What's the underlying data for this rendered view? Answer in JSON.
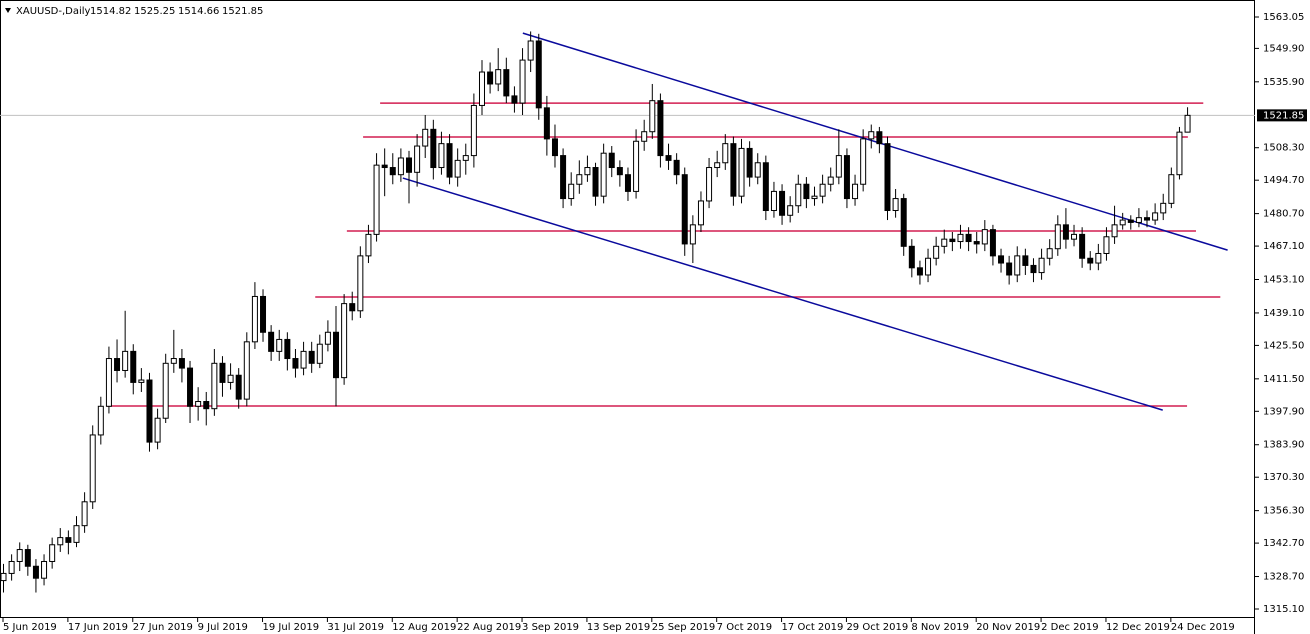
{
  "chart_data": {
    "type": "candlestick",
    "title": "XAUUSD-,Daily",
    "ylim": [
      1311.33,
      1568.91
    ],
    "yticks": [
      1563.05,
      {
        "value": 1549.9,
        "label": "1549.90"
      },
      {
        "value": 1535.9,
        "label": "1535.90"
      },
      {
        "value": 1508.3,
        "label": "1508.30"
      },
      {
        "value": 1494.7,
        "label": "1494.70"
      },
      {
        "value": 1480.7,
        "label": "1480.70"
      },
      {
        "value": 1467.1,
        "label": "1467.10"
      },
      {
        "value": 1453.1,
        "label": "1453.10"
      },
      {
        "value": 1439.1,
        "label": "1439.10"
      },
      {
        "value": 1425.5,
        "label": "1425.50"
      },
      {
        "value": 1411.5,
        "label": "1411.50"
      },
      {
        "value": 1397.9,
        "label": "1397.90"
      },
      {
        "value": 1383.9,
        "label": "1383.90"
      },
      {
        "value": 1370.3,
        "label": "1370.30"
      },
      {
        "value": 1356.3,
        "label": "1356.30"
      },
      {
        "value": 1342.7,
        "label": "1342.70"
      },
      {
        "value": 1328.7,
        "label": "1328.70"
      },
      {
        "value": 1315.1,
        "label": "1315.10"
      }
    ],
    "categories": [
      "5 Jun 2019",
      null,
      null,
      null,
      null,
      null,
      null,
      null,
      "17 Jun 2019",
      null,
      null,
      null,
      null,
      null,
      null,
      null,
      "27 Jun 2019",
      null,
      null,
      null,
      null,
      null,
      null,
      null,
      "9 Jul 2019",
      null,
      null,
      null,
      null,
      null,
      null,
      null,
      "19 Jul 2019",
      null,
      null,
      null,
      null,
      null,
      null,
      null,
      "31 Jul 2019",
      null,
      null,
      null,
      null,
      null,
      null,
      null,
      "12 Aug 2019",
      null,
      null,
      null,
      null,
      null,
      null,
      null,
      "22 Aug 2019",
      null,
      null,
      null,
      null,
      null,
      null,
      null,
      "3 Sep 2019",
      null,
      null,
      null,
      null,
      null,
      null,
      null,
      "13 Sep 2019",
      null,
      null,
      null,
      null,
      null,
      null,
      null,
      "25 Sep 2019",
      null,
      null,
      null,
      null,
      null,
      null,
      null,
      "7 Oct 2019",
      null,
      null,
      null,
      null,
      null,
      null,
      null,
      "17 Oct 2019",
      null,
      null,
      null,
      null,
      null,
      null,
      null,
      "29 Oct 2019",
      null,
      null,
      null,
      null,
      null,
      null,
      null,
      "8 Nov 2019",
      null,
      null,
      null,
      null,
      null,
      null,
      null,
      "20 Nov 2019",
      null,
      null,
      null,
      null,
      null,
      null,
      null,
      "2 Dec 2019",
      null,
      null,
      null,
      null,
      null,
      null,
      null,
      "12 Dec 2019",
      null,
      null,
      null,
      null,
      null,
      null,
      null,
      "24 Dec 2019",
      null,
      null
    ],
    "ohlc": [
      [
        1327,
        1334,
        1322,
        1330
      ],
      [
        1330,
        1338,
        1327,
        1335
      ],
      [
        1335,
        1343,
        1331,
        1340
      ],
      [
        1340,
        1342,
        1329,
        1333
      ],
      [
        1333,
        1336,
        1322,
        1328
      ],
      [
        1328,
        1338,
        1325,
        1335
      ],
      [
        1335,
        1345,
        1332,
        1342
      ],
      [
        1342,
        1349,
        1339,
        1345
      ],
      [
        1345,
        1348,
        1338,
        1343
      ],
      [
        1343,
        1354,
        1341,
        1350
      ],
      [
        1350,
        1364,
        1347,
        1360
      ],
      [
        1360,
        1392,
        1357,
        1388
      ],
      [
        1388,
        1404,
        1384,
        1400
      ],
      [
        1400,
        1425,
        1397,
        1420
      ],
      [
        1420,
        1428,
        1410,
        1415
      ],
      [
        1415,
        1440,
        1412,
        1423
      ],
      [
        1423,
        1426,
        1405,
        1410
      ],
      [
        1410,
        1416,
        1406,
        1411
      ],
      [
        1411,
        1414,
        1381,
        1385
      ],
      [
        1385,
        1399,
        1382,
        1395
      ],
      [
        1395,
        1422,
        1393,
        1418
      ],
      [
        1418,
        1432,
        1414,
        1420
      ],
      [
        1420,
        1424,
        1410,
        1416
      ],
      [
        1416,
        1419,
        1393,
        1400
      ],
      [
        1400,
        1408,
        1394,
        1402
      ],
      [
        1402,
        1406,
        1392,
        1399
      ],
      [
        1399,
        1424,
        1396,
        1418
      ],
      [
        1418,
        1421,
        1404,
        1410
      ],
      [
        1410,
        1418,
        1407,
        1413
      ],
      [
        1413,
        1416,
        1399,
        1403
      ],
      [
        1403,
        1431,
        1400,
        1427
      ],
      [
        1427,
        1452,
        1424,
        1446
      ],
      [
        1446,
        1449,
        1427,
        1431
      ],
      [
        1431,
        1434,
        1419,
        1423
      ],
      [
        1423,
        1432,
        1419,
        1428
      ],
      [
        1428,
        1431,
        1415,
        1420
      ],
      [
        1420,
        1424,
        1412,
        1416
      ],
      [
        1416,
        1427,
        1413,
        1423
      ],
      [
        1423,
        1427,
        1414,
        1418
      ],
      [
        1418,
        1430,
        1416,
        1426
      ],
      [
        1426,
        1436,
        1423,
        1431
      ],
      [
        1431,
        1442,
        1400,
        1412
      ],
      [
        1412,
        1447,
        1409,
        1443
      ],
      [
        1443,
        1448,
        1436,
        1440
      ],
      [
        1440,
        1467,
        1437,
        1463
      ],
      [
        1463,
        1476,
        1460,
        1472
      ],
      [
        1472,
        1506,
        1469,
        1501
      ],
      [
        1501,
        1508,
        1488,
        1500
      ],
      [
        1500,
        1506,
        1493,
        1497
      ],
      [
        1497,
        1508,
        1494,
        1504
      ],
      [
        1504,
        1507,
        1485,
        1498
      ],
      [
        1498,
        1514,
        1492,
        1509
      ],
      [
        1509,
        1522,
        1504,
        1516
      ],
      [
        1516,
        1520,
        1495,
        1500
      ],
      [
        1500,
        1515,
        1497,
        1510
      ],
      [
        1510,
        1514,
        1493,
        1496
      ],
      [
        1496,
        1508,
        1492,
        1503
      ],
      [
        1503,
        1510,
        1497,
        1505
      ],
      [
        1505,
        1531,
        1500,
        1526
      ],
      [
        1526,
        1545,
        1522,
        1540
      ],
      [
        1540,
        1544,
        1531,
        1535
      ],
      [
        1535,
        1550,
        1532,
        1541
      ],
      [
        1541,
        1546,
        1527,
        1530
      ],
      [
        1530,
        1534,
        1523,
        1527
      ],
      [
        1527,
        1550,
        1522,
        1545
      ],
      [
        1545,
        1557,
        1540,
        1553
      ],
      [
        1553,
        1556,
        1520,
        1525
      ],
      [
        1525,
        1530,
        1505,
        1512
      ],
      [
        1512,
        1518,
        1500,
        1505
      ],
      [
        1505,
        1508,
        1483,
        1487
      ],
      [
        1487,
        1498,
        1484,
        1493
      ],
      [
        1493,
        1503,
        1489,
        1497
      ],
      [
        1497,
        1505,
        1494,
        1500
      ],
      [
        1500,
        1502,
        1484,
        1488
      ],
      [
        1488,
        1510,
        1485,
        1506
      ],
      [
        1506,
        1509,
        1496,
        1500
      ],
      [
        1500,
        1503,
        1492,
        1497
      ],
      [
        1497,
        1500,
        1486,
        1490
      ],
      [
        1490,
        1516,
        1487,
        1511
      ],
      [
        1511,
        1520,
        1507,
        1515
      ],
      [
        1515,
        1535,
        1512,
        1528
      ],
      [
        1528,
        1531,
        1500,
        1505
      ],
      [
        1505,
        1510,
        1499,
        1503
      ],
      [
        1503,
        1506,
        1493,
        1497
      ],
      [
        1497,
        1500,
        1463,
        1468
      ],
      [
        1468,
        1480,
        1460,
        1476
      ],
      [
        1476,
        1490,
        1473,
        1486
      ],
      [
        1486,
        1504,
        1483,
        1500
      ],
      [
        1500,
        1507,
        1496,
        1502
      ],
      [
        1502,
        1514,
        1499,
        1510
      ],
      [
        1510,
        1513,
        1484,
        1488
      ],
      [
        1488,
        1512,
        1485,
        1508
      ],
      [
        1508,
        1511,
        1492,
        1496
      ],
      [
        1496,
        1506,
        1493,
        1502
      ],
      [
        1502,
        1505,
        1478,
        1482
      ],
      [
        1482,
        1494,
        1479,
        1490
      ],
      [
        1490,
        1493,
        1476,
        1480
      ],
      [
        1480,
        1488,
        1477,
        1484
      ],
      [
        1484,
        1497,
        1481,
        1493
      ],
      [
        1493,
        1496,
        1483,
        1487
      ],
      [
        1487,
        1492,
        1484,
        1488
      ],
      [
        1488,
        1497,
        1485,
        1493
      ],
      [
        1493,
        1500,
        1490,
        1496
      ],
      [
        1496,
        1516,
        1493,
        1505
      ],
      [
        1505,
        1508,
        1483,
        1487
      ],
      [
        1487,
        1497,
        1484,
        1493
      ],
      [
        1493,
        1516,
        1490,
        1512
      ],
      [
        1512,
        1518,
        1508,
        1515
      ],
      [
        1515,
        1517,
        1506,
        1510
      ],
      [
        1510,
        1513,
        1478,
        1482
      ],
      [
        1482,
        1491,
        1479,
        1487
      ],
      [
        1487,
        1489,
        1463,
        1467
      ],
      [
        1467,
        1470,
        1454,
        1458
      ],
      [
        1458,
        1461,
        1451,
        1455
      ],
      [
        1455,
        1466,
        1452,
        1462
      ],
      [
        1462,
        1471,
        1459,
        1467
      ],
      [
        1467,
        1474,
        1464,
        1470
      ],
      [
        1470,
        1473,
        1465,
        1469
      ],
      [
        1469,
        1476,
        1466,
        1472
      ],
      [
        1472,
        1475,
        1465,
        1469
      ],
      [
        1469,
        1473,
        1464,
        1468
      ],
      [
        1468,
        1478,
        1465,
        1474
      ],
      [
        1474,
        1476,
        1459,
        1463
      ],
      [
        1463,
        1466,
        1456,
        1460
      ],
      [
        1460,
        1463,
        1451,
        1455
      ],
      [
        1455,
        1467,
        1452,
        1463
      ],
      [
        1463,
        1466,
        1455,
        1459
      ],
      [
        1459,
        1462,
        1452,
        1456
      ],
      [
        1456,
        1466,
        1453,
        1462
      ],
      [
        1462,
        1470,
        1459,
        1466
      ],
      [
        1466,
        1480,
        1463,
        1476
      ],
      [
        1476,
        1483,
        1466,
        1470
      ],
      [
        1470,
        1476,
        1467,
        1472
      ],
      [
        1472,
        1475,
        1458,
        1462
      ],
      [
        1462,
        1465,
        1457,
        1460
      ],
      [
        1460,
        1468,
        1457,
        1464
      ],
      [
        1464,
        1475,
        1461,
        1471
      ],
      [
        1471,
        1484,
        1468,
        1476
      ],
      [
        1476,
        1481,
        1474,
        1478
      ],
      [
        1478,
        1480,
        1474,
        1477
      ],
      [
        1477,
        1483,
        1475,
        1479
      ],
      [
        1479,
        1482,
        1475,
        1478
      ],
      [
        1478,
        1485,
        1476,
        1481
      ],
      [
        1481,
        1489,
        1478,
        1485
      ],
      [
        1485,
        1500,
        1483,
        1497
      ],
      [
        1497,
        1517,
        1495,
        1514.82
      ],
      [
        1514.82,
        1525.25,
        1514.66,
        1521.85
      ]
    ],
    "hlines": [
      {
        "value": 1527.0,
        "x": [
          46.5,
          148
        ]
      },
      {
        "value": 1512.8,
        "x": [
          44.4,
          146.1
        ]
      },
      {
        "value": 1473.4,
        "x": [
          42.4,
          147.1
        ]
      },
      {
        "value": 1445.8,
        "x": [
          38.5,
          150.1
        ]
      },
      {
        "value": 1400.1,
        "x": [
          12.8,
          146
        ]
      }
    ],
    "hline_color": "#d21e50",
    "trendlines": [
      {
        "x": [
          64.1,
          151
        ],
        "y": [
          1556.3,
          1465.4
        ]
      },
      {
        "x": [
          49.3,
          143
        ],
        "y": [
          1495.6,
          1398.4
        ]
      }
    ],
    "trendline_color": "#0a0a9c",
    "up_color": "#ffffff",
    "down_color": "#000000"
  }
}
